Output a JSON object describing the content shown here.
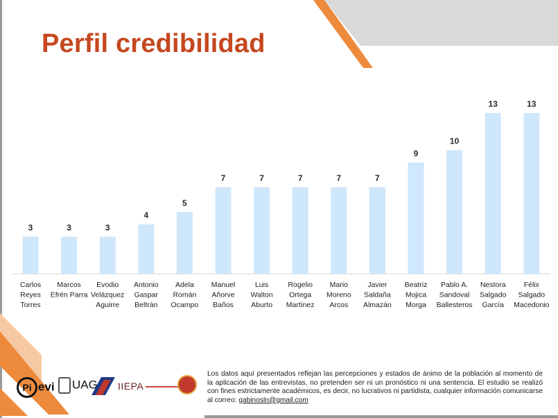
{
  "slide": {
    "title": "Perfil credibilidad",
    "disclaimer": "Los datos aquí presentados reflejan las percepciones y estados de ánimo de la población al momento de la aplicación de las entrevistas, no pretenden ser ni un pronóstico ni una sentencia. El estudio se realizó con fines estrictamente académicos, es decir, no lucrativos ni partidista, cualquier información comunicarse al correo: ",
    "email": "gabinosln@gmail.com"
  },
  "logos": {
    "pievi": "Pi evi",
    "uagro": "UAGro",
    "iiepa": "IIEPA"
  },
  "colors": {
    "title": "#c5481f",
    "bar": "#cfe7fb",
    "accent_orange": "#ee8a3c",
    "accent_gray": "#d9d9d9"
  },
  "chart_data": {
    "type": "bar",
    "title": "",
    "xlabel": "",
    "ylabel": "",
    "ylim": [
      0,
      14
    ],
    "grid": false,
    "legend": "none",
    "categories": [
      [
        "Carlos",
        "Reyes",
        "Torres"
      ],
      [
        "Marcos",
        "Efrén Parra"
      ],
      [
        "Evodio",
        "Velázquez",
        "Aguirre"
      ],
      [
        "Antonio",
        "Gaspar",
        "Beltrán"
      ],
      [
        "Adela",
        "Román",
        "Ocampo"
      ],
      [
        "Manuel",
        "Añorve",
        "Baños"
      ],
      [
        "Luis",
        "Walton",
        "Aburto"
      ],
      [
        "Rogelio",
        "Ortega",
        "Martínez"
      ],
      [
        "Mario",
        "Moreno",
        "Arcos"
      ],
      [
        "Javier",
        "Saldaña",
        "Almazán"
      ],
      [
        "Beatriz",
        "Mojica",
        "Morga"
      ],
      [
        "Pablo A.",
        "Sandoval",
        "Ballesteros"
      ],
      [
        "Nestora",
        "Salgado",
        "García"
      ],
      [
        "Félix",
        "Salgado",
        "Macedonio"
      ]
    ],
    "values": [
      3,
      3,
      3,
      4,
      5,
      7,
      7,
      7,
      7,
      7,
      9,
      10,
      13,
      13
    ],
    "value_labels": [
      "3",
      "3",
      "3",
      "4",
      "5",
      "7",
      "7",
      "7",
      "7",
      "7",
      "9",
      "10",
      "13",
      "13"
    ]
  }
}
